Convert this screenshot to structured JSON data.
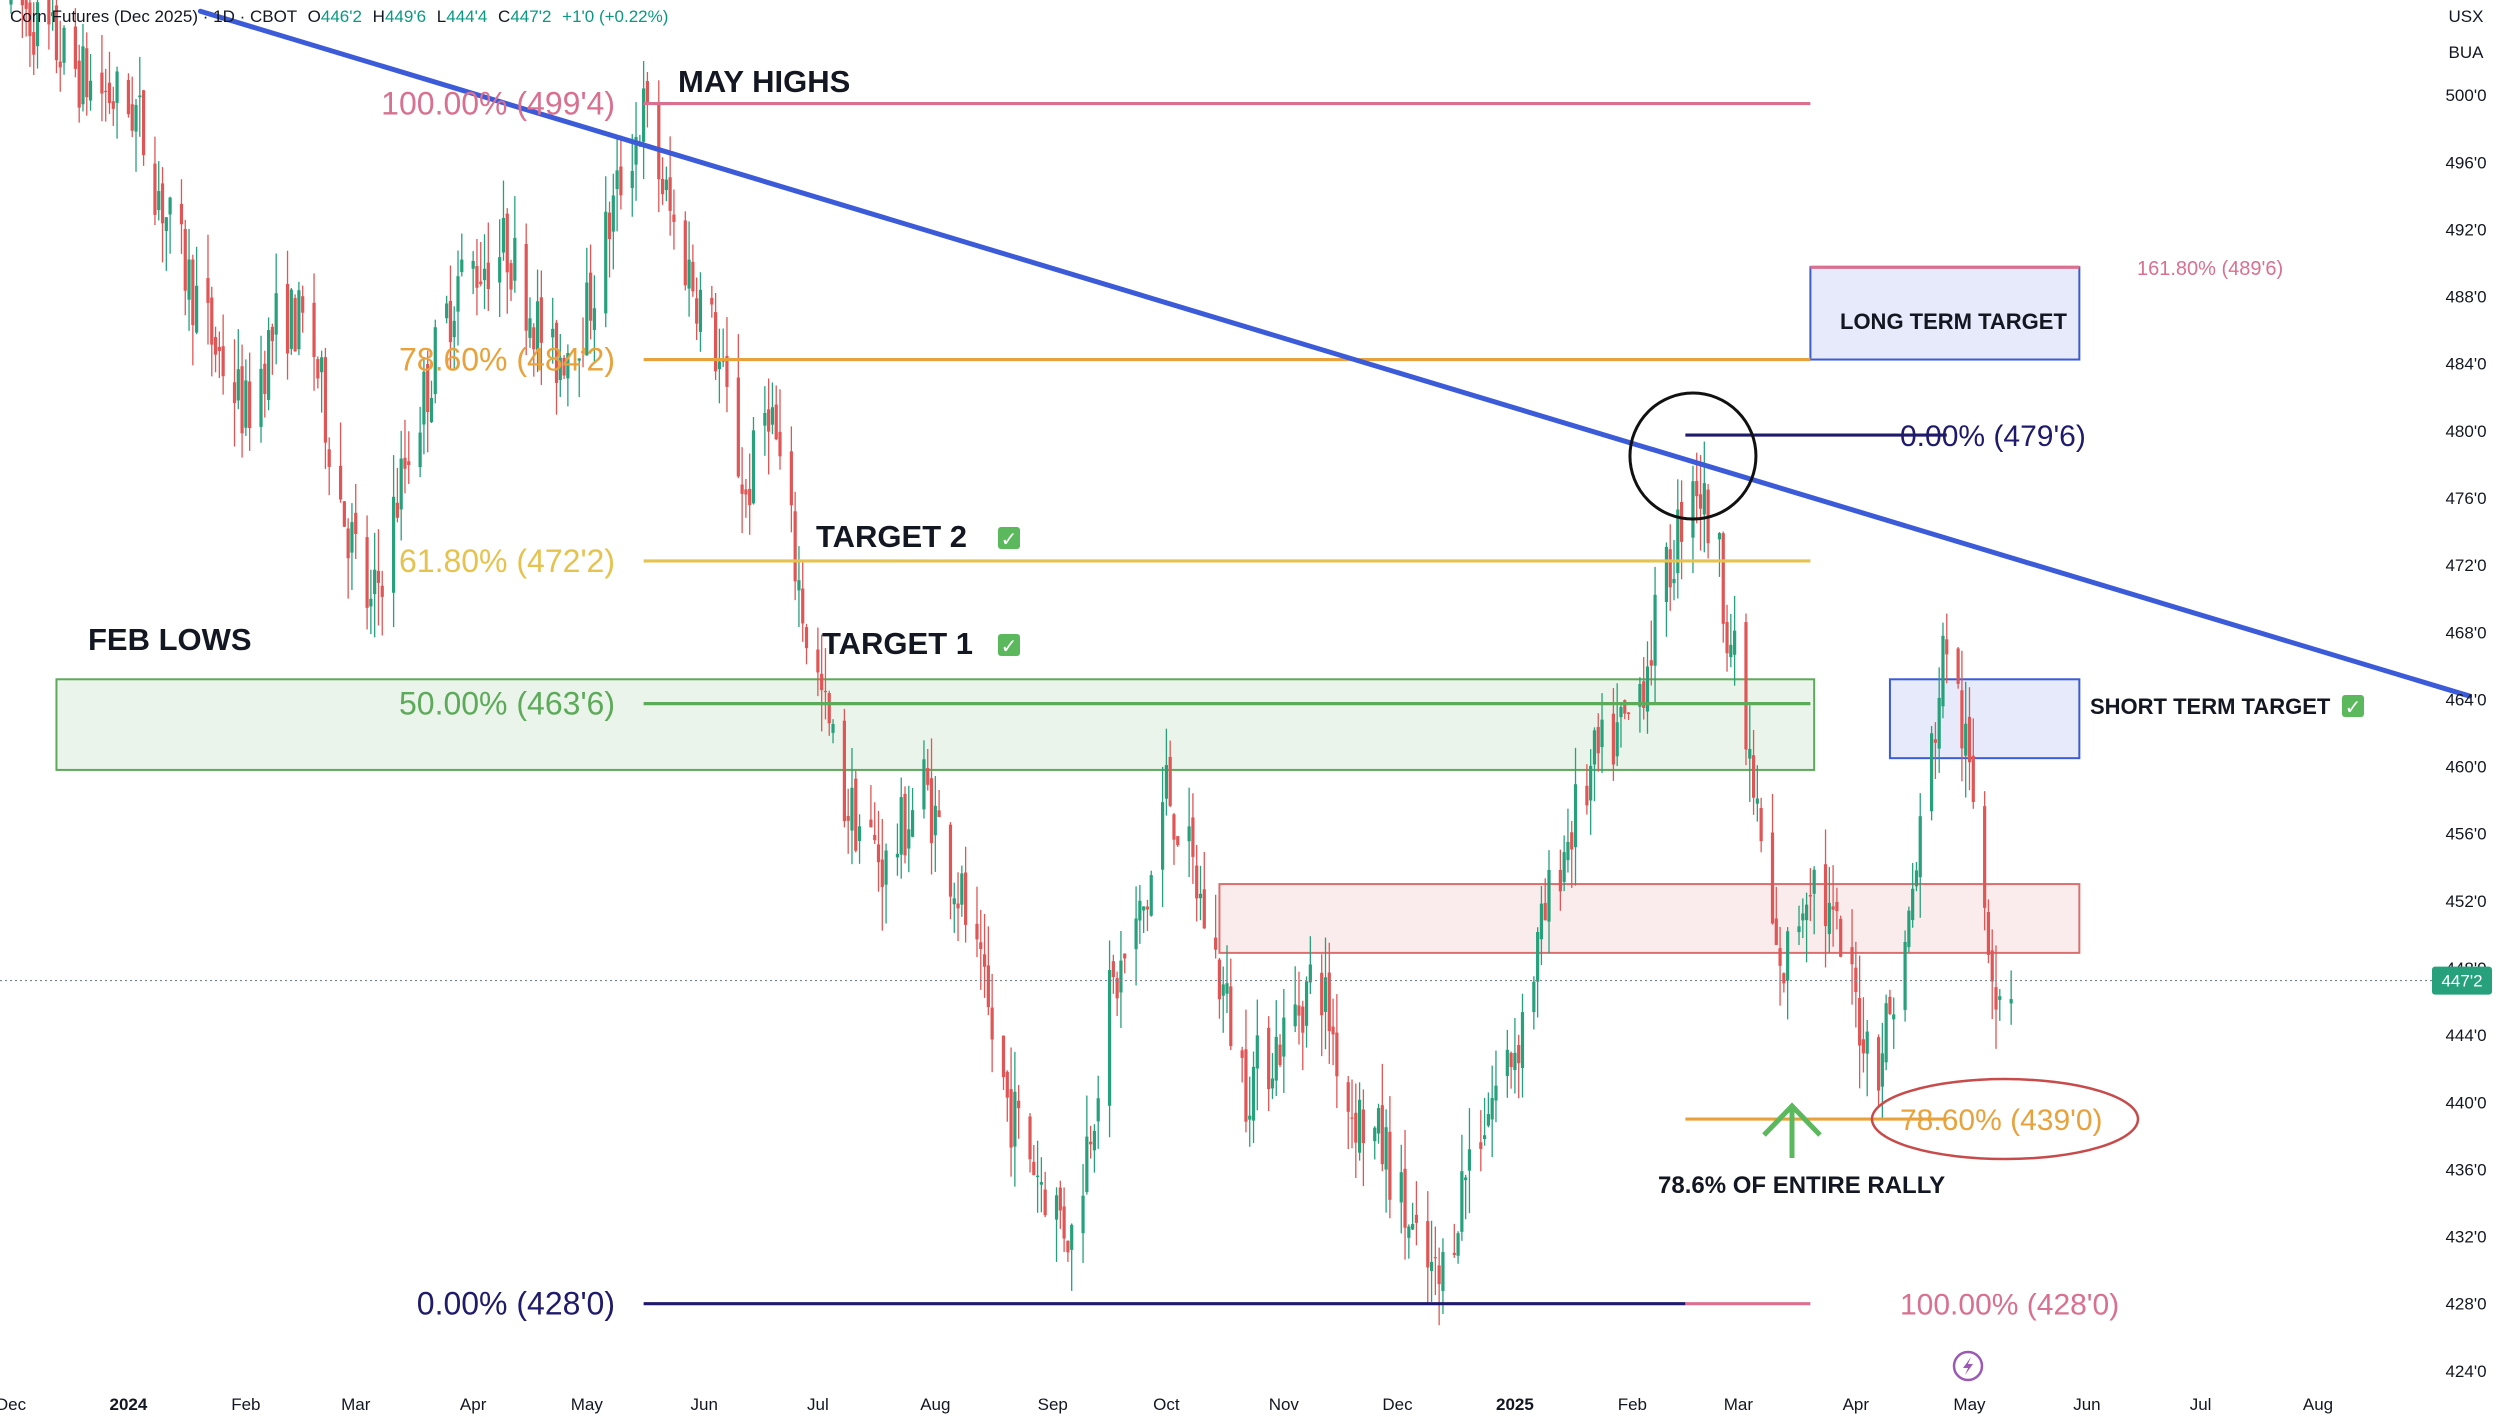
{
  "header": {
    "symbol": "Corn Futures (Dec 2025) · 1D · CBOT",
    "open_label": "O",
    "open": "446'2",
    "high_label": "H",
    "high": "449'6",
    "low_label": "L",
    "low": "444'4",
    "close_label": "C",
    "close": "447'2",
    "change": "+1'0 (+0.22%)",
    "currency": "USX",
    "unit": "BUA"
  },
  "colors": {
    "up": "#26a17b",
    "down": "#e05656",
    "trendline": "#3c5bd8",
    "fib_top": "#d9708f",
    "fib_786": "#e9a23b",
    "fib_618": "#e6c34e",
    "fib_50": "#5daa5a",
    "fib_zero": "#1f1a6b",
    "zone_green": "#5daa5a",
    "zone_red": "#d9706f",
    "zone_blue": "#3c5bd8",
    "price_badge": "#26a17b"
  },
  "chart_data": {
    "type": "candlestick",
    "y_axis": {
      "min": 422.5,
      "max": 501.5,
      "ticks": [
        "424'0",
        "428'0",
        "432'0",
        "436'0",
        "440'0",
        "444'0",
        "448'0",
        "452'0",
        "456'0",
        "460'0",
        "464'0",
        "468'0",
        "472'0",
        "476'0",
        "480'0",
        "484'0",
        "488'0",
        "492'0",
        "496'0",
        "500'0"
      ],
      "tick_values": [
        424,
        428,
        432,
        436,
        440,
        444,
        448,
        452,
        456,
        460,
        464,
        468,
        472,
        476,
        480,
        484,
        488,
        492,
        496,
        500
      ],
      "current_price_label": "447'2",
      "current_price": 447.25
    },
    "x_axis": {
      "labels": [
        "Dec",
        "2024",
        "Feb",
        "Mar",
        "Apr",
        "May",
        "Jun",
        "Jul",
        "Aug",
        "Sep",
        "Oct",
        "Nov",
        "Dec",
        "2025",
        "Feb",
        "Mar",
        "Apr",
        "May",
        "Jun",
        "Jul",
        "Aug"
      ],
      "bold": [
        false,
        true,
        false,
        false,
        false,
        false,
        false,
        false,
        false,
        false,
        false,
        false,
        false,
        true,
        false,
        false,
        false,
        false,
        false,
        false,
        false
      ],
      "dates": [
        "2023-12-01",
        "2024-01-01",
        "2024-02-01",
        "2024-03-01",
        "2024-04-01",
        "2024-05-01",
        "2024-06-01",
        "2024-07-01",
        "2024-08-01",
        "2024-09-01",
        "2024-10-01",
        "2024-11-01",
        "2024-12-01",
        "2025-01-01",
        "2025-02-01",
        "2025-03-01",
        "2025-04-01",
        "2025-05-01",
        "2025-06-01",
        "2025-07-01",
        "2025-08-01"
      ]
    },
    "price_path": [
      [
        "2023-12-01",
        506
      ],
      [
        "2023-12-20",
        501
      ],
      [
        "2024-01-03",
        499
      ],
      [
        "2024-01-12",
        492
      ],
      [
        "2024-01-22",
        486
      ],
      [
        "2024-02-01",
        481
      ],
      [
        "2024-02-10",
        487
      ],
      [
        "2024-02-18",
        486
      ],
      [
        "2024-02-26",
        476
      ],
      [
        "2024-03-05",
        469
      ],
      [
        "2024-03-15",
        479
      ],
      [
        "2024-03-28",
        489
      ],
      [
        "2024-04-10",
        491
      ],
      [
        "2024-04-22",
        484
      ],
      [
        "2024-05-01",
        487
      ],
      [
        "2024-05-10",
        495
      ],
      [
        "2024-05-16",
        499
      ],
      [
        "2024-05-24",
        492
      ],
      [
        "2024-06-03",
        486
      ],
      [
        "2024-06-12",
        476
      ],
      [
        "2024-06-18",
        482
      ],
      [
        "2024-06-28",
        468
      ],
      [
        "2024-07-08",
        458
      ],
      [
        "2024-07-19",
        454
      ],
      [
        "2024-07-29",
        459
      ],
      [
        "2024-08-08",
        452
      ],
      [
        "2024-08-20",
        440
      ],
      [
        "2024-08-30",
        435
      ],
      [
        "2024-09-06",
        432
      ],
      [
        "2024-09-16",
        446
      ],
      [
        "2024-09-26",
        452
      ],
      [
        "2024-10-01",
        459
      ],
      [
        "2024-10-10",
        452
      ],
      [
        "2024-10-22",
        441
      ],
      [
        "2024-11-01",
        444
      ],
      [
        "2024-11-10",
        448
      ],
      [
        "2024-11-18",
        440
      ],
      [
        "2024-11-28",
        437
      ],
      [
        "2024-12-06",
        431
      ],
      [
        "2024-12-12",
        429
      ],
      [
        "2024-12-20",
        437
      ],
      [
        "2025-01-02",
        444
      ],
      [
        "2025-01-12",
        454
      ],
      [
        "2025-01-22",
        460
      ],
      [
        "2025-02-01",
        463
      ],
      [
        "2025-02-10",
        471
      ],
      [
        "2025-02-17",
        478
      ],
      [
        "2025-02-24",
        472
      ],
      [
        "2025-03-04",
        460
      ],
      [
        "2025-03-12",
        447
      ],
      [
        "2025-03-20",
        454
      ],
      [
        "2025-03-28",
        449
      ],
      [
        "2025-04-06",
        442
      ],
      [
        "2025-04-14",
        449
      ],
      [
        "2025-04-21",
        461
      ],
      [
        "2025-04-25",
        468
      ],
      [
        "2025-05-02",
        458
      ],
      [
        "2025-05-08",
        447
      ],
      [
        "2025-05-12",
        447.25
      ]
    ],
    "candle_start": "2023-12-01",
    "candle_end": "2025-05-12",
    "trendline": {
      "from": [
        "2024-01-20",
        505
      ],
      "to": [
        "2025-09-10",
        464.2
      ]
    },
    "fib_retracement": [
      {
        "label": "100.00% (499'4)",
        "value": 499.5,
        "from": "2024-05-16",
        "to": "2025-03-20",
        "color_key": "fib_top"
      },
      {
        "label": "78.60% (484'2)",
        "value": 484.25,
        "from": "2024-05-16",
        "to": "2025-03-20",
        "color_key": "fib_786"
      },
      {
        "label": "61.80% (472'2)",
        "value": 472.25,
        "from": "2024-05-16",
        "to": "2025-03-20",
        "color_key": "fib_618"
      },
      {
        "label": "50.00% (463'6)",
        "value": 463.75,
        "from": "2024-05-16",
        "to": "2025-03-20",
        "color_key": "fib_50"
      },
      {
        "label": "0.00% (428'0)",
        "value": 428.0,
        "from": "2024-05-16",
        "to": "2025-02-15",
        "color_key": "fib_zero"
      }
    ],
    "fib_extension": [
      {
        "label": "0.00% (479'6)",
        "value": 479.75,
        "from": "2025-02-15",
        "to": "2025-04-25",
        "color_key": "fib_zero"
      },
      {
        "label": "78.60% (439'0)",
        "value": 439.0,
        "from": "2025-02-15",
        "to": "2025-04-25",
        "color_key": "fib_786"
      },
      {
        "label": "100.00% (428'0)",
        "value": 428.0,
        "from": "2025-02-15",
        "to": "2025-03-20",
        "color_key": "fib_top"
      },
      {
        "label": "161.80% (489'6)",
        "value": 489.75,
        "from": "2025-03-20",
        "to": "2025-05-30",
        "color_key": "fib_top"
      }
    ],
    "zones": [
      {
        "name": "support-zone",
        "from": "2023-12-13",
        "to": "2025-03-21",
        "top": 465.2,
        "bottom": 459.8,
        "color_key": "zone_green"
      },
      {
        "name": "resistance-zone",
        "from": "2024-10-15",
        "to": "2025-05-30",
        "top": 453.0,
        "bottom": 448.9,
        "color_key": "zone_red"
      },
      {
        "name": "short-term-target-zone",
        "from": "2025-04-10",
        "to": "2025-05-30",
        "top": 465.2,
        "bottom": 460.5,
        "color_key": "zone_blue"
      },
      {
        "name": "long-term-target-zone",
        "from": "2025-03-20",
        "to": "2025-05-30",
        "top": 489.75,
        "bottom": 484.25,
        "color_key": "zone_blue"
      }
    ],
    "circle_marker": {
      "date": "2025-02-17",
      "value": 478.5
    },
    "annotations": {
      "may_highs": "MAY HIGHS",
      "feb_lows": "FEB LOWS",
      "target2": "TARGET 2",
      "target1": "TARGET 1",
      "long_term_target": "LONG TERM TARGET",
      "short_term_target": "SHORT TERM TARGET",
      "rally": "78.6% OF ENTIRE RALLY",
      "check": "✓"
    }
  }
}
